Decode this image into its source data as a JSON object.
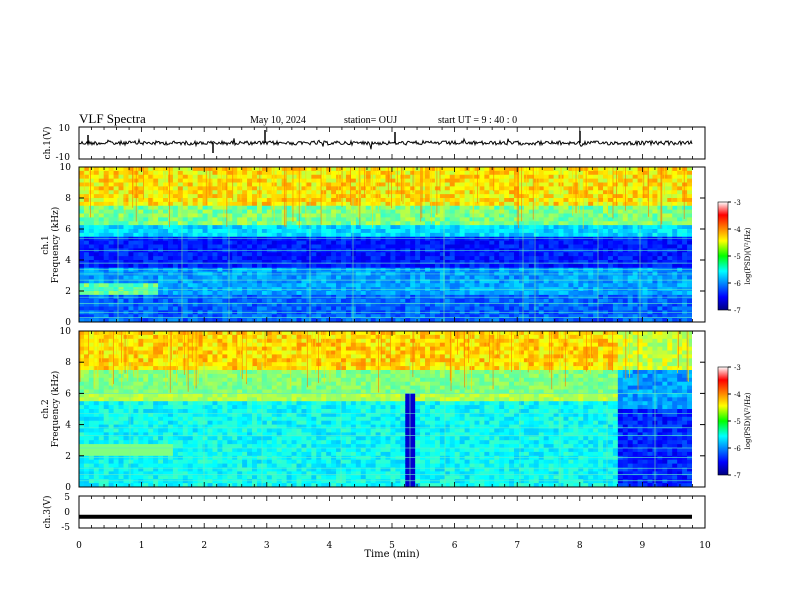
{
  "header": {
    "title": "VLF Spectra",
    "date": "May 10, 2024",
    "station": "station= OUJ",
    "start_ut": "start UT =  9 : 40 : 0"
  },
  "colors": {
    "axis": "#000000",
    "spectro_bg": "#0a1a9c"
  },
  "chart_data": [
    {
      "type": "line",
      "id": "ch1_waveform",
      "ylabel": "ch.1(V)",
      "ylim": [
        -10,
        10
      ],
      "yticks": [
        "10",
        "-10"
      ],
      "grid": false
    },
    {
      "type": "heatmap",
      "id": "ch1_spectrogram",
      "ylabel_line1": "ch.1",
      "ylabel_line2": "Frequency (kHz)",
      "ylim": [
        0,
        10
      ],
      "yticks": [
        "0",
        "2",
        "4",
        "6",
        "8",
        "10"
      ],
      "colorbar": {
        "label": "log(PSD)(V²/Hz)",
        "range": [
          -7,
          -3
        ],
        "ticks": [
          "-3",
          "-4",
          "-5",
          "-6",
          "-7"
        ],
        "colormap": "jet"
      }
    },
    {
      "type": "heatmap",
      "id": "ch2_spectrogram",
      "ylabel_line1": "ch.2",
      "ylabel_line2": "Frequency (kHz)",
      "ylim": [
        0,
        10
      ],
      "yticks": [
        "0",
        "2",
        "4",
        "6",
        "8",
        "10"
      ],
      "colorbar": {
        "label": "log(PSD)(V²/Hz)",
        "range": [
          -7,
          -3
        ],
        "ticks": [
          "-3",
          "-4",
          "-5",
          "-6",
          "-7"
        ],
        "colormap": "jet"
      }
    },
    {
      "type": "line",
      "id": "ch3_waveform",
      "ylabel": "ch.3(V)",
      "ylim": [
        -5,
        5
      ],
      "yticks": [
        "5",
        "0",
        "-5"
      ],
      "values_constant": -1.5
    }
  ],
  "xaxis": {
    "label": "Time  (min)",
    "range": [
      0,
      10
    ],
    "ticks": [
      "0",
      "1",
      "2",
      "3",
      "4",
      "5",
      "6",
      "7",
      "8",
      "9",
      "10"
    ]
  }
}
